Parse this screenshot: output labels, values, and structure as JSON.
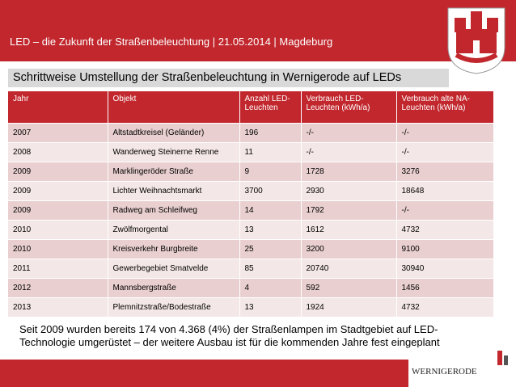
{
  "header": {
    "title": "LED – die Zukunft der Straßenbeleuchtung | 21.05.2014 | Magdeburg"
  },
  "subtitle": "Schrittweise Umstellung der Straßenbeleuchtung in Wernigerode auf LEDs",
  "table": {
    "columns": [
      "Jahr",
      "Objekt",
      "Anzahl LED-Leuchten",
      "Verbrauch LED-Leuchten (kWh/a)",
      "Verbrauch alte NA-Leuchten (kWh/a)"
    ],
    "rows": [
      [
        "2007",
        "Altstadtkreisel (Geländer)",
        "196",
        "-/-",
        "-/-"
      ],
      [
        "2008",
        "Wanderweg Steinerne Renne",
        "11",
        "-/-",
        "-/-"
      ],
      [
        "2009",
        "Marklingeröder Straße",
        "9",
        "1728",
        "3276"
      ],
      [
        "2009",
        "Lichter Weihnachtsmarkt",
        "3700",
        "2930",
        "18648"
      ],
      [
        "2009",
        "Radweg am Schleifweg",
        "14",
        "1792",
        "-/-"
      ],
      [
        "2010",
        "Zwölfmorgental",
        "13",
        "1612",
        "4732"
      ],
      [
        "2010",
        "Kreisverkehr Burgbreite",
        "25",
        "3200",
        "9100"
      ],
      [
        "2011",
        "Gewerbegebiet Smatvelde",
        "85",
        "20740",
        "30940"
      ],
      [
        "2012",
        "Mannsbergstraße",
        "4",
        "592",
        "1456"
      ],
      [
        "2013",
        "Plemnitzstraße/Bodestraße",
        "13",
        "1924",
        "4732"
      ]
    ]
  },
  "footnote": "Seit 2009 wurden bereits 174 von 4.368 (4%) der Straßenlampen im Stadtgebiet auf LED-Technologie umgerüstet – der weitere Ausbau ist für die kommenden Jahre fest eingeplant",
  "logo": {
    "text": "WERNIGERODE"
  }
}
